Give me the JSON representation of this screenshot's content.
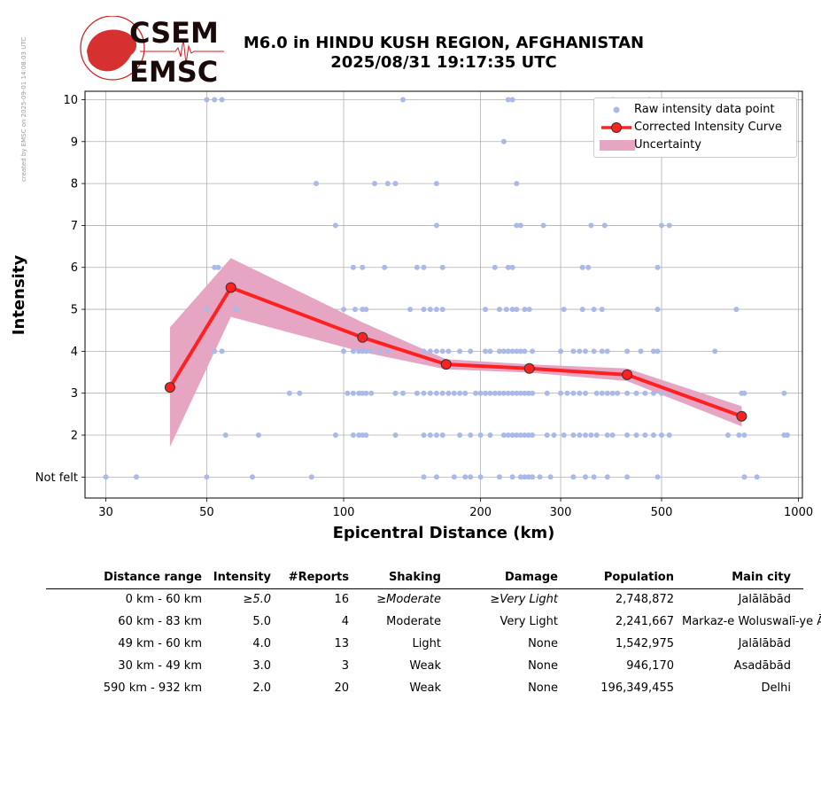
{
  "watermark": "created by EMSC on 2025-09-01 14:08:03 UTC",
  "logo": {
    "line1": "CSEM",
    "line2": "EMSC"
  },
  "title": {
    "line1": "M6.0 in HINDU KUSH REGION, AFGHANISTAN",
    "line2": "2025/08/31 19:17:35 UTC"
  },
  "legend": {
    "raw": "Raw intensity data point",
    "curve": "Corrected Intensity Curve",
    "uncertainty": "Uncertainty"
  },
  "chart_data": {
    "type": "scatter",
    "title": "M6.0 in HINDU KUSH REGION, AFGHANISTAN",
    "xlabel": "Epicentral Distance (km)",
    "ylabel": "Intensity",
    "xscale": "log",
    "xlim": [
      27,
      1020
    ],
    "ylim": [
      0.5,
      10.2
    ],
    "xticks": [
      30,
      50,
      100,
      200,
      300,
      500,
      1000
    ],
    "yticks": [
      1,
      2,
      3,
      4,
      5,
      6,
      7,
      8,
      9,
      10
    ],
    "ytick_labels": [
      "Not felt",
      "2",
      "3",
      "4",
      "5",
      "6",
      "7",
      "8",
      "9",
      "10"
    ],
    "grid": true,
    "legend_position": "top-right",
    "colors": {
      "raw": "#aab9e8",
      "curve": "#ff2020",
      "band": "#e6a6c3",
      "marker_edge": "#333333"
    },
    "series": [
      {
        "name": "Raw intensity data point",
        "points": [
          [
            50,
            10
          ],
          [
            52,
            10
          ],
          [
            54,
            10
          ],
          [
            135,
            10
          ],
          [
            230,
            10
          ],
          [
            235,
            10
          ],
          [
            390,
            10
          ],
          [
            470,
            10
          ],
          [
            225,
            9
          ],
          [
            87,
            8
          ],
          [
            117,
            8
          ],
          [
            125,
            8
          ],
          [
            130,
            8
          ],
          [
            160,
            8
          ],
          [
            240,
            8
          ],
          [
            96,
            7
          ],
          [
            160,
            7
          ],
          [
            240,
            7
          ],
          [
            245,
            7
          ],
          [
            275,
            7
          ],
          [
            350,
            7
          ],
          [
            375,
            7
          ],
          [
            500,
            7
          ],
          [
            520,
            7
          ],
          [
            52,
            6
          ],
          [
            53,
            6
          ],
          [
            105,
            6
          ],
          [
            110,
            6
          ],
          [
            123,
            6
          ],
          [
            145,
            6
          ],
          [
            150,
            6
          ],
          [
            165,
            6
          ],
          [
            215,
            6
          ],
          [
            230,
            6
          ],
          [
            235,
            6
          ],
          [
            335,
            6
          ],
          [
            345,
            6
          ],
          [
            490,
            6
          ],
          [
            50,
            5
          ],
          [
            58,
            5
          ],
          [
            100,
            5
          ],
          [
            106,
            5
          ],
          [
            110,
            5
          ],
          [
            112,
            5
          ],
          [
            140,
            5
          ],
          [
            150,
            5
          ],
          [
            155,
            5
          ],
          [
            160,
            5
          ],
          [
            165,
            5
          ],
          [
            205,
            5
          ],
          [
            220,
            5
          ],
          [
            228,
            5
          ],
          [
            235,
            5
          ],
          [
            240,
            5
          ],
          [
            250,
            5
          ],
          [
            256,
            5
          ],
          [
            305,
            5
          ],
          [
            335,
            5
          ],
          [
            355,
            5
          ],
          [
            370,
            5
          ],
          [
            490,
            5
          ],
          [
            730,
            5
          ],
          [
            52,
            4
          ],
          [
            54,
            4
          ],
          [
            100,
            4
          ],
          [
            105,
            4
          ],
          [
            108,
            4
          ],
          [
            110,
            4
          ],
          [
            112,
            4
          ],
          [
            115,
            4
          ],
          [
            120,
            4
          ],
          [
            125,
            4
          ],
          [
            150,
            4
          ],
          [
            155,
            4
          ],
          [
            160,
            4
          ],
          [
            165,
            4
          ],
          [
            170,
            4
          ],
          [
            180,
            4
          ],
          [
            190,
            4
          ],
          [
            205,
            4
          ],
          [
            210,
            4
          ],
          [
            220,
            4
          ],
          [
            225,
            4
          ],
          [
            230,
            4
          ],
          [
            235,
            4
          ],
          [
            240,
            4
          ],
          [
            245,
            4
          ],
          [
            250,
            4
          ],
          [
            260,
            4
          ],
          [
            300,
            4
          ],
          [
            320,
            4
          ],
          [
            330,
            4
          ],
          [
            340,
            4
          ],
          [
            355,
            4
          ],
          [
            370,
            4
          ],
          [
            380,
            4
          ],
          [
            420,
            4
          ],
          [
            450,
            4
          ],
          [
            480,
            4
          ],
          [
            490,
            4
          ],
          [
            655,
            4
          ],
          [
            76,
            3
          ],
          [
            80,
            3
          ],
          [
            102,
            3
          ],
          [
            105,
            3
          ],
          [
            108,
            3
          ],
          [
            110,
            3
          ],
          [
            112,
            3
          ],
          [
            115,
            3
          ],
          [
            130,
            3
          ],
          [
            135,
            3
          ],
          [
            145,
            3
          ],
          [
            150,
            3
          ],
          [
            155,
            3
          ],
          [
            160,
            3
          ],
          [
            165,
            3
          ],
          [
            170,
            3
          ],
          [
            175,
            3
          ],
          [
            180,
            3
          ],
          [
            185,
            3
          ],
          [
            195,
            3
          ],
          [
            200,
            3
          ],
          [
            205,
            3
          ],
          [
            210,
            3
          ],
          [
            215,
            3
          ],
          [
            220,
            3
          ],
          [
            225,
            3
          ],
          [
            230,
            3
          ],
          [
            235,
            3
          ],
          [
            240,
            3
          ],
          [
            245,
            3
          ],
          [
            250,
            3
          ],
          [
            255,
            3
          ],
          [
            260,
            3
          ],
          [
            280,
            3
          ],
          [
            300,
            3
          ],
          [
            310,
            3
          ],
          [
            320,
            3
          ],
          [
            330,
            3
          ],
          [
            340,
            3
          ],
          [
            360,
            3
          ],
          [
            370,
            3
          ],
          [
            380,
            3
          ],
          [
            390,
            3
          ],
          [
            400,
            3
          ],
          [
            420,
            3
          ],
          [
            440,
            3
          ],
          [
            460,
            3
          ],
          [
            480,
            3
          ],
          [
            500,
            3
          ],
          [
            520,
            3
          ],
          [
            750,
            3
          ],
          [
            760,
            3
          ],
          [
            930,
            3
          ],
          [
            55,
            2
          ],
          [
            65,
            2
          ],
          [
            96,
            2
          ],
          [
            105,
            2
          ],
          [
            108,
            2
          ],
          [
            110,
            2
          ],
          [
            112,
            2
          ],
          [
            130,
            2
          ],
          [
            150,
            2
          ],
          [
            155,
            2
          ],
          [
            160,
            2
          ],
          [
            165,
            2
          ],
          [
            180,
            2
          ],
          [
            190,
            2
          ],
          [
            200,
            2
          ],
          [
            210,
            2
          ],
          [
            225,
            2
          ],
          [
            230,
            2
          ],
          [
            235,
            2
          ],
          [
            240,
            2
          ],
          [
            245,
            2
          ],
          [
            250,
            2
          ],
          [
            255,
            2
          ],
          [
            260,
            2
          ],
          [
            280,
            2
          ],
          [
            290,
            2
          ],
          [
            305,
            2
          ],
          [
            320,
            2
          ],
          [
            330,
            2
          ],
          [
            340,
            2
          ],
          [
            350,
            2
          ],
          [
            360,
            2
          ],
          [
            380,
            2
          ],
          [
            390,
            2
          ],
          [
            420,
            2
          ],
          [
            440,
            2
          ],
          [
            460,
            2
          ],
          [
            480,
            2
          ],
          [
            500,
            2
          ],
          [
            520,
            2
          ],
          [
            700,
            2
          ],
          [
            740,
            2
          ],
          [
            760,
            2
          ],
          [
            930,
            2
          ],
          [
            945,
            2
          ],
          [
            30,
            1
          ],
          [
            35,
            1
          ],
          [
            50,
            1
          ],
          [
            63,
            1
          ],
          [
            85,
            1
          ],
          [
            150,
            1
          ],
          [
            160,
            1
          ],
          [
            175,
            1
          ],
          [
            185,
            1
          ],
          [
            190,
            1
          ],
          [
            200,
            1
          ],
          [
            220,
            1
          ],
          [
            235,
            1
          ],
          [
            245,
            1
          ],
          [
            250,
            1
          ],
          [
            255,
            1
          ],
          [
            260,
            1
          ],
          [
            270,
            1
          ],
          [
            285,
            1
          ],
          [
            320,
            1
          ],
          [
            340,
            1
          ],
          [
            355,
            1
          ],
          [
            380,
            1
          ],
          [
            420,
            1
          ],
          [
            490,
            1
          ],
          [
            760,
            1
          ],
          [
            810,
            1
          ]
        ]
      },
      {
        "name": "Corrected Intensity Curve",
        "x": [
          41.5,
          56.5,
          110,
          168,
          256,
          420,
          750
        ],
        "y": [
          3.14,
          5.52,
          4.33,
          3.69,
          3.59,
          3.44,
          2.45
        ]
      },
      {
        "name": "Uncertainty",
        "x": [
          41.5,
          56.5,
          110,
          168,
          256,
          420,
          750
        ],
        "lower": [
          1.72,
          4.82,
          3.98,
          3.57,
          3.49,
          3.29,
          2.21
        ],
        "upper": [
          4.57,
          6.22,
          4.69,
          3.81,
          3.69,
          3.59,
          2.69
        ]
      }
    ]
  },
  "table": {
    "headers": [
      "Distance range",
      "Intensity",
      "#Reports",
      "Shaking",
      "Damage",
      "Population",
      "Main city"
    ],
    "rows": [
      {
        "range": "0 km -   60 km",
        "intensity": "≥5.0",
        "reports": "16",
        "shaking": "≥Moderate",
        "damage": "≥Very Light",
        "population": "2,748,872",
        "city": "Jalālābād"
      },
      {
        "range": "60 km -   83 km",
        "intensity": "5.0",
        "reports": "4",
        "shaking": "Moderate",
        "damage": "Very Light",
        "population": "2,241,667",
        "city": "Markaz-e Woluswalī-ye Āchīn"
      },
      {
        "range": "49 km -   60 km",
        "intensity": "4.0",
        "reports": "13",
        "shaking": "Light",
        "damage": "None",
        "population": "1,542,975",
        "city": "Jalālābād"
      },
      {
        "range": "30 km -   49 km",
        "intensity": "3.0",
        "reports": "3",
        "shaking": "Weak",
        "damage": "None",
        "population": "946,170",
        "city": "Asadābād"
      },
      {
        "range": "590 km -  932 km",
        "intensity": "2.0",
        "reports": "20",
        "shaking": "Weak",
        "damage": "None",
        "population": "196,349,455",
        "city": "Delhi"
      }
    ]
  }
}
